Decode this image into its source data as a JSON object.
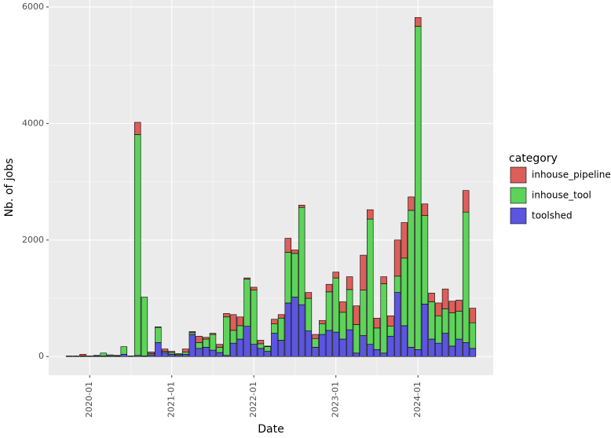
{
  "chart_data": {
    "type": "bar",
    "stacked": true,
    "x_label": "Date",
    "y_label": "Nb. of jobs",
    "legend_title": "category",
    "legend_position": "right",
    "grid": true,
    "x": [
      "2019-10",
      "2019-11",
      "2019-12",
      "2020-01",
      "2020-02",
      "2020-03",
      "2020-04",
      "2020-05",
      "2020-06",
      "2020-07",
      "2020-08",
      "2020-09",
      "2020-10",
      "2020-11",
      "2020-12",
      "2021-01",
      "2021-02",
      "2021-03",
      "2021-04",
      "2021-05",
      "2021-06",
      "2021-07",
      "2021-08",
      "2021-09",
      "2021-10",
      "2021-11",
      "2021-12",
      "2022-01",
      "2022-02",
      "2022-03",
      "2022-04",
      "2022-05",
      "2022-06",
      "2022-07",
      "2022-08",
      "2022-09",
      "2022-10",
      "2022-11",
      "2022-12",
      "2023-01",
      "2023-02",
      "2023-03",
      "2023-04",
      "2023-05",
      "2023-06",
      "2023-07",
      "2023-08",
      "2023-09",
      "2023-10",
      "2023-11",
      "2023-12",
      "2024-01",
      "2024-02",
      "2024-03",
      "2024-04",
      "2024-05",
      "2024-06",
      "2024-07",
      "2024-08",
      "2024-09"
    ],
    "xlim": [
      "2019-07",
      "2024-12"
    ],
    "xticks": [
      "2020-01",
      "2021-01",
      "2022-01",
      "2023-01",
      "2024-01"
    ],
    "ylim": [
      -320,
      6120
    ],
    "yticks": [
      0,
      2000,
      4000,
      6000
    ],
    "series": [
      {
        "name": "inhouse_pipeline",
        "color": "#dd5f5a",
        "values": [
          0,
          0,
          30,
          0,
          0,
          0,
          0,
          0,
          0,
          0,
          210,
          0,
          30,
          10,
          40,
          20,
          10,
          50,
          20,
          110,
          30,
          20,
          50,
          60,
          270,
          150,
          20,
          50,
          60,
          10,
          80,
          60,
          240,
          60,
          40,
          100,
          70,
          60,
          130,
          100,
          180,
          220,
          320,
          600,
          160,
          170,
          120,
          180,
          620,
          610,
          230,
          150,
          200,
          150,
          220,
          340,
          200,
          190,
          370,
          250
        ]
      },
      {
        "name": "inhouse_tool",
        "color": "#5dd35a",
        "values": [
          5,
          5,
          5,
          5,
          10,
          50,
          15,
          10,
          130,
          5,
          3790,
          1010,
          20,
          260,
          20,
          30,
          20,
          40,
          30,
          100,
          140,
          270,
          90,
          660,
          220,
          230,
          810,
          930,
          80,
          80,
          160,
          380,
          870,
          750,
          1670,
          560,
          150,
          180,
          660,
          930,
          460,
          690,
          490,
          780,
          2150,
          370,
          1190,
          170,
          280,
          1160,
          2350,
          5550,
          1520,
          640,
          470,
          420,
          570,
          480,
          2240,
          440
        ]
      },
      {
        "name": "toolshed",
        "color": "#5b55e0",
        "values": [
          5,
          5,
          5,
          5,
          10,
          10,
          15,
          10,
          40,
          5,
          20,
          10,
          30,
          240,
          70,
          40,
          20,
          40,
          380,
          140,
          160,
          110,
          70,
          20,
          230,
          300,
          520,
          210,
          140,
          90,
          400,
          280,
          920,
          1020,
          890,
          440,
          160,
          380,
          450,
          420,
          300,
          460,
          60,
          360,
          210,
          120,
          60,
          350,
          1100,
          530,
          160,
          120,
          900,
          300,
          230,
          400,
          180,
          300,
          240,
          140
        ]
      }
    ]
  }
}
